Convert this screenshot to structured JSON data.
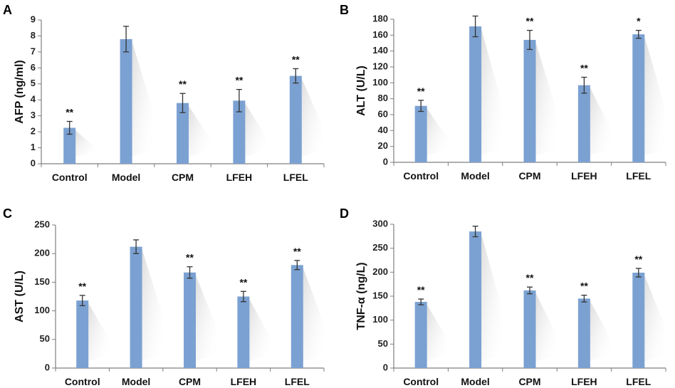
{
  "chart_data": [
    {
      "panel": "A",
      "type": "bar",
      "ylabel": "AFP (ng/ml)",
      "xlabel": "",
      "categories": [
        "Control",
        "Model",
        "CPM",
        "LFEH",
        "LFEL"
      ],
      "values": [
        2.25,
        7.8,
        3.8,
        3.95,
        5.5
      ],
      "errors": [
        0.4,
        0.8,
        0.6,
        0.7,
        0.45
      ],
      "significance": [
        "**",
        "",
        "**",
        "**",
        "**"
      ],
      "ylim": [
        0,
        9
      ],
      "yticks": [
        0,
        1,
        2,
        3,
        4,
        5,
        6,
        7,
        8,
        9
      ]
    },
    {
      "panel": "B",
      "type": "bar",
      "ylabel": "ALT (U/L)",
      "xlabel": "",
      "categories": [
        "Control",
        "Model",
        "CPM",
        "LFEH",
        "LFEL"
      ],
      "values": [
        71,
        171,
        154,
        97,
        161
      ],
      "errors": [
        7,
        13,
        12,
        10,
        5
      ],
      "significance": [
        "**",
        "",
        "**",
        "**",
        "*"
      ],
      "ylim": [
        0,
        180
      ],
      "yticks": [
        0,
        20,
        40,
        60,
        80,
        100,
        120,
        140,
        160,
        180
      ]
    },
    {
      "panel": "C",
      "type": "bar",
      "ylabel": "AST (U/L)",
      "xlabel": "",
      "categories": [
        "Control",
        "Model",
        "CPM",
        "LFEH",
        "LFEL"
      ],
      "values": [
        118,
        212,
        167,
        125,
        180
      ],
      "errors": [
        9,
        12,
        10,
        9,
        8
      ],
      "significance": [
        "**",
        "",
        "**",
        "**",
        "**"
      ],
      "ylim": [
        0,
        250
      ],
      "yticks": [
        0,
        50,
        100,
        150,
        200,
        250
      ]
    },
    {
      "panel": "D",
      "type": "bar",
      "ylabel": "TNF-α (ng/L)",
      "xlabel": "",
      "categories": [
        "Control",
        "Model",
        "CPM",
        "LFEH",
        "LFEL"
      ],
      "values": [
        138,
        285,
        162,
        145,
        199
      ],
      "errors": [
        6,
        11,
        7,
        7,
        9
      ],
      "significance": [
        "**",
        "",
        "**",
        "**",
        "**"
      ],
      "ylim": [
        0,
        300
      ],
      "yticks": [
        0,
        50,
        100,
        150,
        200,
        250,
        300
      ]
    }
  ],
  "colors": {
    "bar": "#7ba1d2",
    "axis": "#7f7f7f",
    "text": "#111111"
  }
}
